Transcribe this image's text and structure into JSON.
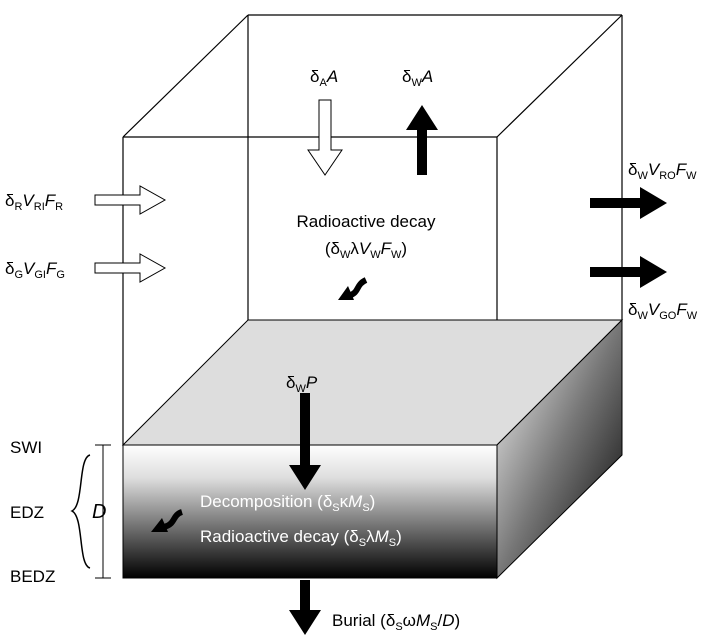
{
  "labels": {
    "atm_in": [
      "δ",
      "A",
      "A"
    ],
    "atm_out": [
      "δ",
      "W",
      "A"
    ],
    "river_in": [
      "δ",
      "R",
      "V",
      "RI",
      "F",
      "R"
    ],
    "gw_in": [
      "δ",
      "G",
      "V",
      "GI",
      "F",
      "G"
    ],
    "river_out": [
      "δ",
      "W",
      "V",
      "RO",
      "F",
      "W"
    ],
    "gw_out": [
      "δ",
      "W",
      "V",
      "GO",
      "F",
      "W"
    ],
    "water_decay": [
      "Radioactive decay"
    ],
    "water_decay_term": [
      "(δ",
      "W",
      "λ",
      "V",
      "W",
      "F",
      "W",
      ")"
    ],
    "particle": [
      "δ",
      "W",
      "P"
    ],
    "swi": [
      "SWI"
    ],
    "edz": [
      "EDZ"
    ],
    "bedz": [
      "BEDZ"
    ],
    "depth": [
      "D"
    ],
    "decomposition": [
      "Decomposition (δ",
      "S",
      "κ",
      "M",
      "S",
      ")"
    ],
    "sed_decay": [
      "Radioactive decay (δ",
      "S",
      "λ",
      "M",
      "S",
      ")"
    ],
    "burial": [
      "Burial (δ",
      "S",
      "ω",
      "M",
      "S",
      "/",
      "D",
      ")"
    ]
  }
}
